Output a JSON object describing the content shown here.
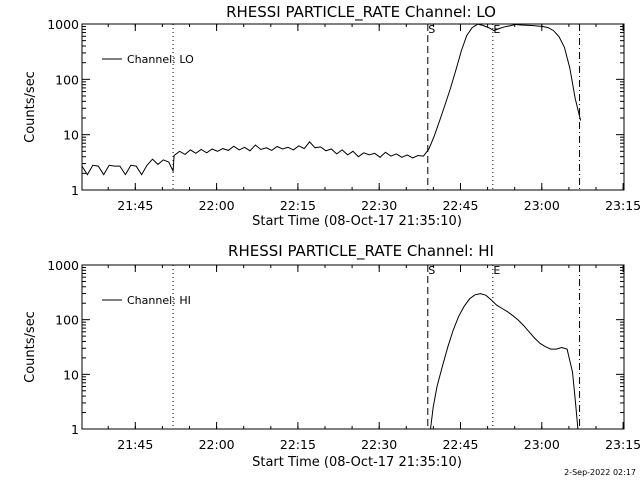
{
  "chart_data": [
    {
      "type": "line",
      "title": "RHESSI PARTICLE_RATE Channel: LO",
      "xlabel": "Start Time (08-Oct-17 21:35:10)",
      "ylabel": "Counts/sec",
      "yscale": "log",
      "ylim": [
        1,
        1000
      ],
      "xlim_minutes": [
        0,
        100
      ],
      "x_ticks": [
        "21:45",
        "22:00",
        "22:15",
        "22:30",
        "22:45",
        "23:00",
        "23:15"
      ],
      "y_ticks": [
        "1",
        "10",
        "100",
        "1000"
      ],
      "legend": {
        "label": "Channel: LO",
        "position": "top-left"
      },
      "markers": [
        {
          "minute": 16.8,
          "style": "dotted",
          "label": ""
        },
        {
          "minute": 63.8,
          "style": "dashed",
          "label": "S"
        },
        {
          "minute": 75.8,
          "style": "dotted",
          "label": "E"
        },
        {
          "minute": 91.8,
          "style": "dashdot",
          "label": ""
        }
      ],
      "series": [
        {
          "name": "Channel: LO",
          "x": [
            0,
            1,
            2,
            3,
            4,
            5,
            6,
            7,
            8,
            9,
            10,
            11,
            12,
            13,
            14,
            15,
            16,
            16.8,
            17,
            18,
            19,
            20,
            21,
            22,
            23,
            24,
            25,
            26,
            27,
            28,
            29,
            30,
            31,
            32,
            33,
            34,
            35,
            36,
            37,
            38,
            39,
            40,
            41,
            42,
            43,
            44,
            45,
            46,
            47,
            48,
            49,
            50,
            51,
            52,
            53,
            54,
            55,
            56,
            57,
            58,
            59,
            60,
            61,
            62,
            63,
            64,
            65,
            66,
            67,
            68,
            69,
            70,
            71,
            72,
            73,
            74,
            75,
            76,
            77,
            78,
            79,
            80,
            81,
            82,
            83,
            84,
            85,
            86,
            87,
            88,
            89,
            90,
            91,
            92
          ],
          "y": [
            2.7,
            1.9,
            2.8,
            2.7,
            1.9,
            2.8,
            2.7,
            2.7,
            1.9,
            2.8,
            2.7,
            1.9,
            2.8,
            3.6,
            2.9,
            3.5,
            3.2,
            2.2,
            4.2,
            5.0,
            4.4,
            5.3,
            4.6,
            5.4,
            4.7,
            5.5,
            5.0,
            5.6,
            5.2,
            6.2,
            5.3,
            5.9,
            5.1,
            6.5,
            5.4,
            5.8,
            5.2,
            6.1,
            5.5,
            5.9,
            5.3,
            6.3,
            5.6,
            7.4,
            5.8,
            6.0,
            5.1,
            5.5,
            4.5,
            5.3,
            4.3,
            5.0,
            4.0,
            4.7,
            4.3,
            4.6,
            3.9,
            4.8,
            4.1,
            4.5,
            3.9,
            4.3,
            3.8,
            4.2,
            4.1,
            5.5,
            9.5,
            18,
            35,
            70,
            150,
            330,
            620,
            860,
            990,
            940,
            860,
            760,
            830,
            890,
            930,
            980,
            960,
            950,
            940,
            920,
            900,
            860,
            760,
            590,
            380,
            160,
            45,
            18
          ]
        }
      ]
    },
    {
      "type": "line",
      "title": "RHESSI PARTICLE_RATE Channel: HI",
      "xlabel": "Start Time (08-Oct-17 21:35:10)",
      "ylabel": "Counts/sec",
      "yscale": "log",
      "ylim": [
        1,
        1000
      ],
      "xlim_minutes": [
        0,
        100
      ],
      "x_ticks": [
        "21:45",
        "22:00",
        "22:15",
        "22:30",
        "22:45",
        "23:00",
        "23:15"
      ],
      "y_ticks": [
        "1",
        "10",
        "100",
        "1000"
      ],
      "legend": {
        "label": "Channel: HI",
        "position": "top-left"
      },
      "markers": [
        {
          "minute": 16.8,
          "style": "dotted",
          "label": ""
        },
        {
          "minute": 63.8,
          "style": "dashed",
          "label": "S"
        },
        {
          "minute": 75.8,
          "style": "dotted",
          "label": "E"
        },
        {
          "minute": 91.8,
          "style": "dashdot",
          "label": ""
        }
      ],
      "series": [
        {
          "name": "Channel: HI",
          "x": [
            64.3,
            64.8,
            65.5,
            66.5,
            67.5,
            68.5,
            69.5,
            70.5,
            71.5,
            72.5,
            73.5,
            74.5,
            75.5,
            76.5,
            77.5,
            78.5,
            79.5,
            80.5,
            81.5,
            82.5,
            83.5,
            84.5,
            85.5,
            86.5,
            87.5,
            88.5,
            89.5,
            90.5,
            91.0,
            91.5
          ],
          "y": [
            1.0,
            2.5,
            6,
            14,
            32,
            65,
            115,
            175,
            240,
            285,
            300,
            280,
            230,
            185,
            160,
            140,
            118,
            98,
            78,
            60,
            46,
            37,
            32,
            29,
            29,
            31,
            29,
            11,
            3.5,
            1.0
          ]
        }
      ]
    }
  ],
  "footer": {
    "timestamp": "2-Sep-2022 02:17"
  }
}
